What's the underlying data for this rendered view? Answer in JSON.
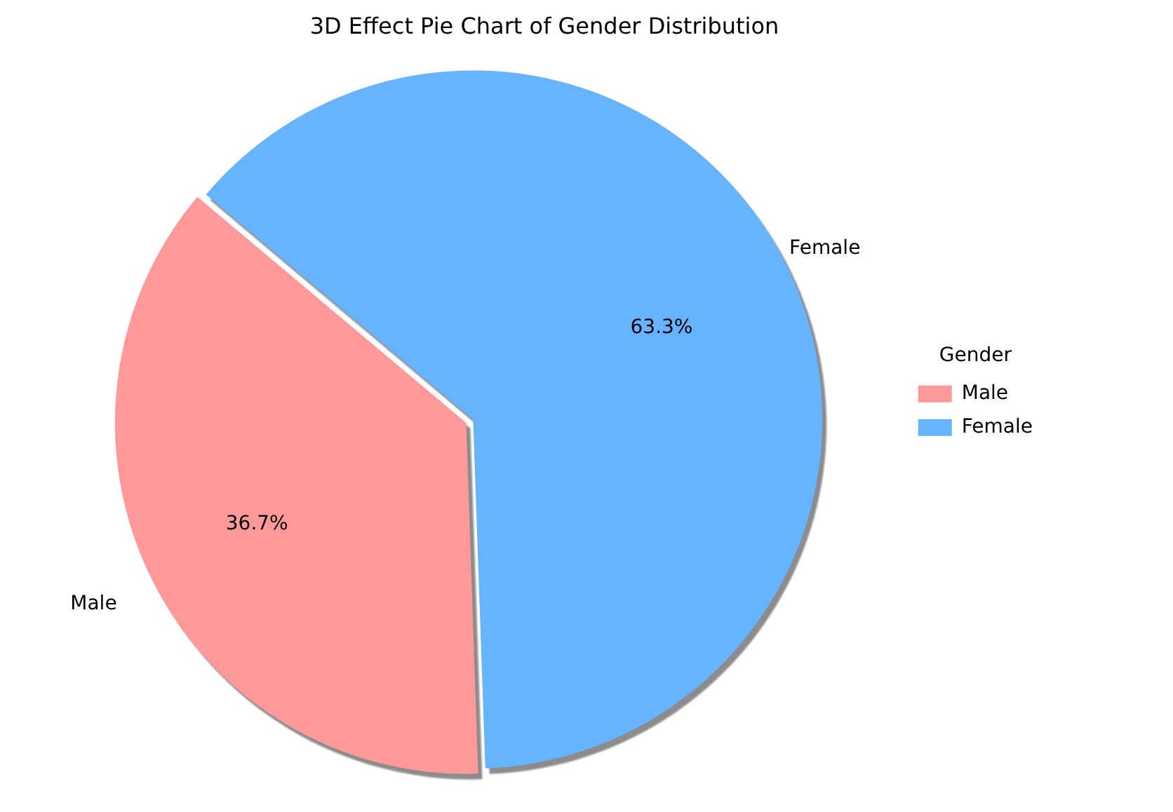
{
  "chart_data": {
    "type": "pie",
    "title": "3D Effect Pie Chart of Gender Distribution",
    "legend_title": "Gender",
    "legend": "right",
    "categories": [
      "Male",
      "Female"
    ],
    "values": [
      36.7,
      63.3
    ],
    "value_labels": [
      "36.7%",
      "63.3%"
    ],
    "colors": [
      "#ff9999",
      "#66b3ff"
    ]
  }
}
